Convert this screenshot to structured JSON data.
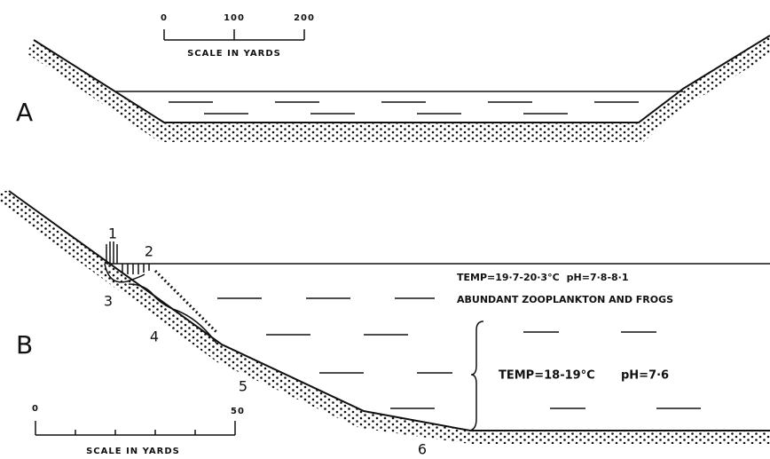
{
  "panel_a": {
    "label": "A",
    "scale": {
      "ticks": [
        "0",
        "100",
        "200"
      ],
      "caption": "SCALE IN YARDS"
    }
  },
  "panel_b": {
    "label": "B",
    "zones": [
      "1",
      "2",
      "3",
      "4",
      "5",
      "6"
    ],
    "upper_layer": {
      "temp": "TEMP=19·7-20·3°C",
      "ph": "pH=7·8-8·1",
      "note": "ABUNDANT ZOOPLANKTON AND FROGS"
    },
    "lower_layer": {
      "temp": "TEMP=18-19°C",
      "ph": "pH=7·6"
    },
    "scale": {
      "ticks": [
        "0",
        "50"
      ],
      "caption": "SCALE IN YARDS"
    }
  }
}
